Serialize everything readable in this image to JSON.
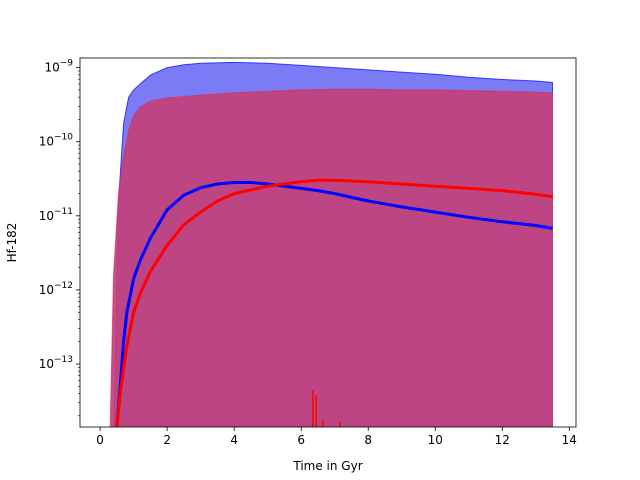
{
  "chart_data": {
    "type": "area",
    "title": "",
    "xlabel": "Time in Gyr",
    "ylabel": "Hf-182",
    "xlim": [
      -0.6,
      14.2
    ],
    "ylim_log10": [
      -13.85,
      -8.87
    ],
    "y_scale": "log",
    "grid": false,
    "x_ticks": [
      {
        "value": 0,
        "label": "0"
      },
      {
        "value": 2,
        "label": "2"
      },
      {
        "value": 4,
        "label": "4"
      },
      {
        "value": 6,
        "label": "6"
      },
      {
        "value": 8,
        "label": "8"
      },
      {
        "value": 10,
        "label": "10"
      },
      {
        "value": 12,
        "label": "12"
      },
      {
        "value": 14,
        "label": "14"
      }
    ],
    "y_ticks": [
      {
        "value": -13,
        "base": "10",
        "exp": "−13"
      },
      {
        "value": -12,
        "base": "10",
        "exp": "−12"
      },
      {
        "value": -11,
        "base": "10",
        "exp": "−11"
      },
      {
        "value": -10,
        "base": "10",
        "exp": "−10"
      },
      {
        "value": -9,
        "base": "10",
        "exp": "−9"
      }
    ],
    "colors": {
      "blue_fill": "#7b7bf5",
      "blue_line": "#0000ff",
      "red_fill": "#c2407a",
      "red_line": "#ff0000",
      "red_edge": "#d9305e"
    },
    "series": [
      {
        "kind": "band_upper",
        "color": "blue",
        "x": [
          0.42,
          0.55,
          0.7,
          0.85,
          1.0,
          1.2,
          1.5,
          2.0,
          2.5,
          3.0,
          4.0,
          5.0,
          6.0,
          7.0,
          8.0,
          9.0,
          10.0,
          11.0,
          12.0,
          13.0,
          13.5
        ],
        "log10_y": [
          -13.85,
          -10.8,
          -9.75,
          -9.4,
          -9.3,
          -9.22,
          -9.1,
          -9.0,
          -8.96,
          -8.94,
          -8.93,
          -8.94,
          -8.97,
          -9.0,
          -9.03,
          -9.06,
          -9.09,
          -9.13,
          -9.16,
          -9.18,
          -9.2
        ]
      },
      {
        "kind": "band_upper",
        "color": "red",
        "x": [
          0.3,
          0.4,
          0.55,
          0.7,
          0.85,
          1.0,
          1.2,
          1.5,
          2.0,
          2.5,
          3.0,
          4.0,
          5.0,
          6.0,
          7.0,
          8.0,
          9.0,
          10.0,
          11.0,
          12.0,
          13.0,
          13.5
        ],
        "log10_y": [
          -13.85,
          -11.8,
          -10.7,
          -10.2,
          -9.85,
          -9.65,
          -9.53,
          -9.45,
          -9.41,
          -9.39,
          -9.37,
          -9.34,
          -9.32,
          -9.3,
          -9.29,
          -9.29,
          -9.3,
          -9.3,
          -9.31,
          -9.32,
          -9.33,
          -9.34
        ]
      },
      {
        "kind": "line",
        "color": "blue",
        "x": [
          0.5,
          0.6,
          0.7,
          0.8,
          1.0,
          1.2,
          1.5,
          2.0,
          2.5,
          3.0,
          3.5,
          4.0,
          4.5,
          5.0,
          5.5,
          6.0,
          6.5,
          7.0,
          8.0,
          9.0,
          10.0,
          11.0,
          12.0,
          13.0,
          13.5
        ],
        "log10_y": [
          -13.85,
          -13.3,
          -12.7,
          -12.3,
          -11.85,
          -11.6,
          -11.3,
          -10.92,
          -10.72,
          -10.62,
          -10.57,
          -10.55,
          -10.55,
          -10.57,
          -10.6,
          -10.63,
          -10.66,
          -10.7,
          -10.8,
          -10.88,
          -10.95,
          -11.02,
          -11.08,
          -11.13,
          -11.17
        ]
      },
      {
        "kind": "line",
        "color": "red",
        "x": [
          0.5,
          0.6,
          0.7,
          0.8,
          1.0,
          1.2,
          1.5,
          2.0,
          2.5,
          3.0,
          3.5,
          4.0,
          5.0,
          6.0,
          6.5,
          7.0,
          8.0,
          9.0,
          10.0,
          11.0,
          12.0,
          13.0,
          13.5
        ],
        "log10_y": [
          -13.85,
          -13.4,
          -13.05,
          -12.75,
          -12.3,
          -12.05,
          -11.75,
          -11.4,
          -11.12,
          -10.95,
          -10.8,
          -10.7,
          -10.6,
          -10.54,
          -10.52,
          -10.52,
          -10.54,
          -10.57,
          -10.6,
          -10.63,
          -10.66,
          -10.71,
          -10.74
        ]
      },
      {
        "kind": "spikes",
        "color": "red",
        "x": [
          6.35,
          6.45,
          6.65,
          7.15
        ],
        "log10_y": [
          -13.35,
          -13.42,
          -13.75,
          -13.78
        ]
      }
    ]
  }
}
